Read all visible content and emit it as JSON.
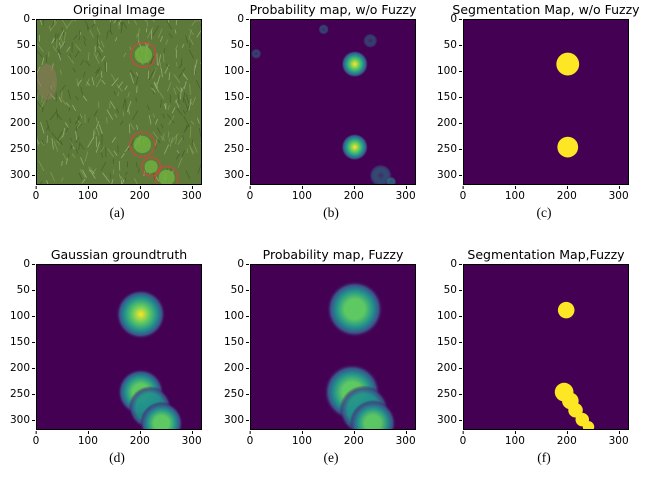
{
  "panels": [
    {
      "id": "a",
      "title": "Original Image",
      "caption": "(a)",
      "kind": "photo",
      "blobs": [
        {
          "cx": 205,
          "cy": 67,
          "r": 24
        },
        {
          "cx": 203,
          "cy": 240,
          "r": 24
        },
        {
          "cx": 220,
          "cy": 283,
          "r": 18
        },
        {
          "cx": 250,
          "cy": 304,
          "r": 22
        }
      ],
      "circle_color": "#c84a3a"
    },
    {
      "id": "b",
      "title": "Probability map, w/o Fuzzy",
      "caption": "(b)",
      "kind": "prob",
      "blobs": [
        {
          "cx": 200,
          "cy": 85,
          "r": 26,
          "v": 1.0
        },
        {
          "cx": 200,
          "cy": 245,
          "r": 26,
          "v": 1.0
        },
        {
          "cx": 140,
          "cy": 18,
          "r": 10,
          "v": 0.15
        },
        {
          "cx": 230,
          "cy": 40,
          "r": 14,
          "v": 0.12
        },
        {
          "cx": 10,
          "cy": 65,
          "r": 10,
          "v": 0.12
        },
        {
          "cx": 250,
          "cy": 300,
          "r": 22,
          "v": 0.2
        },
        {
          "cx": 270,
          "cy": 312,
          "r": 10,
          "v": 0.3
        }
      ]
    },
    {
      "id": "c",
      "title": "Segmentation Map, w/o Fuzzy",
      "caption": "(c)",
      "kind": "seg",
      "blobs": [
        {
          "cx": 200,
          "cy": 85,
          "r": 22
        },
        {
          "cx": 200,
          "cy": 245,
          "r": 20
        }
      ]
    },
    {
      "id": "d",
      "title": "Gaussian groundtruth",
      "caption": "(d)",
      "kind": "gauss",
      "blobs": [
        {
          "cx": 200,
          "cy": 95,
          "r": 30,
          "v": 1.0
        },
        {
          "cx": 200,
          "cy": 245,
          "r": 28,
          "v": 0.85
        },
        {
          "cx": 218,
          "cy": 275,
          "r": 26,
          "v": 0.6
        },
        {
          "cx": 240,
          "cy": 305,
          "r": 26,
          "v": 0.8
        }
      ]
    },
    {
      "id": "e",
      "title": "Probability map, Fuzzy",
      "caption": "(e)",
      "kind": "gauss",
      "blobs": [
        {
          "cx": 200,
          "cy": 85,
          "r": 34,
          "v": 0.75
        },
        {
          "cx": 195,
          "cy": 245,
          "r": 34,
          "v": 0.85
        },
        {
          "cx": 218,
          "cy": 280,
          "r": 30,
          "v": 0.6
        },
        {
          "cx": 235,
          "cy": 305,
          "r": 28,
          "v": 0.65
        }
      ]
    },
    {
      "id": "f",
      "title": "Segmentation Map,Fuzzy",
      "caption": "(f)",
      "kind": "seg",
      "blobs": [
        {
          "cx": 197,
          "cy": 87,
          "r": 16
        },
        {
          "cx": 193,
          "cy": 245,
          "r": 18
        },
        {
          "cx": 205,
          "cy": 262,
          "r": 16
        },
        {
          "cx": 215,
          "cy": 280,
          "r": 14
        },
        {
          "cx": 228,
          "cy": 298,
          "r": 13
        },
        {
          "cx": 240,
          "cy": 312,
          "r": 11
        }
      ]
    }
  ],
  "axis": {
    "y_ticks": [
      "0",
      "50",
      "100",
      "150",
      "200",
      "250",
      "300"
    ],
    "y_values": [
      0,
      50,
      100,
      150,
      200,
      250,
      300
    ],
    "x_ticks": [
      "0",
      "100",
      "200",
      "300"
    ],
    "x_values": [
      0,
      100,
      200,
      300
    ],
    "range": [
      0,
      320
    ]
  },
  "colors": {
    "background": "#440154",
    "low": "#3b528b",
    "mid": "#21918c",
    "high": "#5ec962",
    "peak": "#fde725",
    "grass": "#5e7a3a"
  }
}
